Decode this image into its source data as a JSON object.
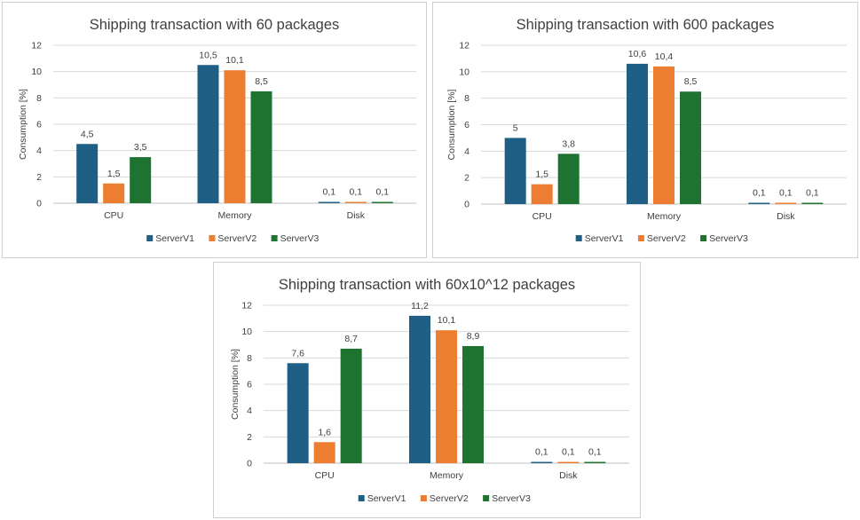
{
  "colors": {
    "ServerV1": "#1F5F86",
    "ServerV2": "#ED7D31",
    "ServerV3": "#1E7330"
  },
  "chart_data": [
    {
      "type": "bar",
      "title": "Shipping transaction with 60 packages",
      "ylabel": "Consumption [%]",
      "xlabel": "",
      "categories": [
        "CPU",
        "Memory",
        "Disk"
      ],
      "ylim": [
        0,
        12
      ],
      "yticks": [
        0,
        2,
        4,
        6,
        8,
        10,
        12
      ],
      "grid": true,
      "legend": "bottom",
      "series": [
        {
          "name": "ServerV1",
          "values": [
            4.5,
            10.5,
            0.1
          ],
          "labels": [
            "4,5",
            "10,5",
            "0,1"
          ]
        },
        {
          "name": "ServerV2",
          "values": [
            1.5,
            10.1,
            0.1
          ],
          "labels": [
            "1,5",
            "10,1",
            "0,1"
          ]
        },
        {
          "name": "ServerV3",
          "values": [
            3.5,
            8.5,
            0.1
          ],
          "labels": [
            "3,5",
            "8,5",
            "0,1"
          ]
        }
      ]
    },
    {
      "type": "bar",
      "title": "Shipping transaction with 600 packages",
      "ylabel": "Consumption [%]",
      "xlabel": "",
      "categories": [
        "CPU",
        "Memory",
        "Disk"
      ],
      "ylim": [
        0,
        12
      ],
      "yticks": [
        0,
        2,
        4,
        6,
        8,
        10,
        12
      ],
      "grid": true,
      "legend": "bottom",
      "series": [
        {
          "name": "ServerV1",
          "values": [
            5,
            10.6,
            0.1
          ],
          "labels": [
            "5",
            "10,6",
            "0,1"
          ]
        },
        {
          "name": "ServerV2",
          "values": [
            1.5,
            10.4,
            0.1
          ],
          "labels": [
            "1,5",
            "10,4",
            "0,1"
          ]
        },
        {
          "name": "ServerV3",
          "values": [
            3.8,
            8.5,
            0.1
          ],
          "labels": [
            "3,8",
            "8,5",
            "0,1"
          ]
        }
      ]
    },
    {
      "type": "bar",
      "title": "Shipping transaction with 60x10^12 packages",
      "ylabel": "Consumption [%]",
      "xlabel": "",
      "categories": [
        "CPU",
        "Memory",
        "Disk"
      ],
      "ylim": [
        0,
        12
      ],
      "yticks": [
        0,
        2,
        4,
        6,
        8,
        10,
        12
      ],
      "grid": true,
      "legend": "bottom",
      "series": [
        {
          "name": "ServerV1",
          "values": [
            7.6,
            11.2,
            0.1
          ],
          "labels": [
            "7,6",
            "11,2",
            "0,1"
          ]
        },
        {
          "name": "ServerV2",
          "values": [
            1.6,
            10.1,
            0.1
          ],
          "labels": [
            "1,6",
            "10,1",
            "0,1"
          ]
        },
        {
          "name": "ServerV3",
          "values": [
            8.7,
            8.9,
            0.1
          ],
          "labels": [
            "8,7",
            "8,9",
            "0,1"
          ]
        }
      ]
    }
  ]
}
